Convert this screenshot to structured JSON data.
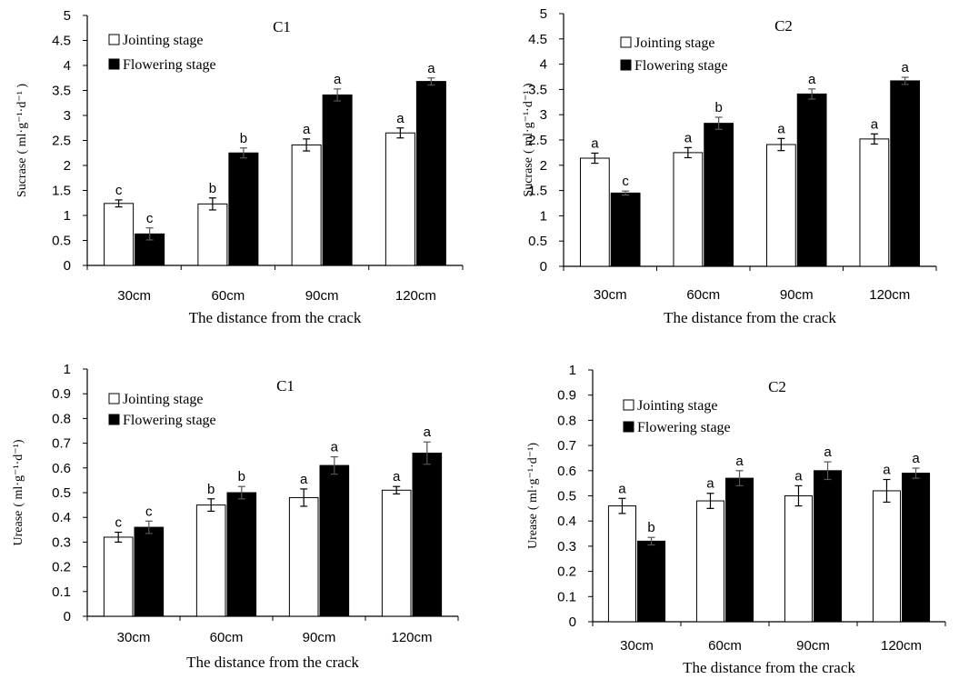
{
  "chart_data": [
    {
      "type": "bar",
      "title": "C1",
      "xlabel": "The distance from the crack",
      "ylabel_main": "Sucrase",
      "ylabel_unit": "( ml·g⁻¹·d⁻¹ )",
      "ylim": [
        0,
        5
      ],
      "ytick_labels": [
        "0",
        "0.5",
        "1",
        "1.5",
        "2",
        "2.5",
        "3",
        "3.5",
        "4",
        "4.5",
        "5"
      ],
      "categories": [
        "30cm",
        "60cm",
        "90cm",
        "120cm"
      ],
      "legend_position": "top-left",
      "series": [
        {
          "name": "Jointing stage",
          "fill": "#ffffff",
          "values": [
            1.24,
            1.23,
            2.41,
            2.65
          ],
          "errors": [
            0.07,
            0.12,
            0.12,
            0.1
          ],
          "letters": [
            "c",
            "b",
            "a",
            "a"
          ]
        },
        {
          "name": "Flowering stage",
          "fill": "#000000",
          "values": [
            0.63,
            2.25,
            3.41,
            3.68
          ],
          "errors": [
            0.12,
            0.1,
            0.12,
            0.07
          ],
          "letters": [
            "c",
            "b",
            "a",
            "a"
          ]
        }
      ]
    },
    {
      "type": "bar",
      "title": "C2",
      "xlabel": "The distance from the crack",
      "ylabel_main": "Sucrase",
      "ylabel_unit": "( ml·g⁻¹·d⁻¹ )",
      "ylim": [
        0,
        5
      ],
      "ytick_labels": [
        "0",
        "0.5",
        "1",
        "1.5",
        "2",
        "2.5",
        "3",
        "3.5",
        "4",
        "4.5",
        "5"
      ],
      "categories": [
        "30cm",
        "60cm",
        "90cm",
        "120cm"
      ],
      "legend_position": "top-left",
      "series": [
        {
          "name": "Jointing stage",
          "fill": "#ffffff",
          "values": [
            2.14,
            2.25,
            2.41,
            2.52
          ],
          "errors": [
            0.1,
            0.1,
            0.12,
            0.1
          ],
          "letters": [
            "a",
            "a",
            "a",
            "a"
          ]
        },
        {
          "name": "Flowering stage",
          "fill": "#000000",
          "values": [
            1.45,
            2.83,
            3.41,
            3.67
          ],
          "errors": [
            0.04,
            0.12,
            0.1,
            0.07
          ],
          "letters": [
            "c",
            "b",
            "a",
            "a"
          ]
        }
      ]
    },
    {
      "type": "bar",
      "title": "C1",
      "xlabel": "The distance from the crack",
      "ylabel_main": "Urease",
      "ylabel_unit": "( ml·g⁻¹·d⁻¹)",
      "ylim": [
        0,
        1
      ],
      "ytick_labels": [
        "0",
        "0.1",
        "0.2",
        "0.3",
        "0.4",
        "0.5",
        "0.6",
        "0.7",
        "0.8",
        "0.9",
        "1"
      ],
      "categories": [
        "30cm",
        "60cm",
        "90cm",
        "120cm"
      ],
      "legend_position": "top-left",
      "series": [
        {
          "name": "Jointing stage",
          "fill": "#ffffff",
          "values": [
            0.32,
            0.45,
            0.48,
            0.51
          ],
          "errors": [
            0.02,
            0.025,
            0.035,
            0.015
          ],
          "letters": [
            "c",
            "b",
            "a",
            "a"
          ]
        },
        {
          "name": "Flowering stage",
          "fill": "#000000",
          "values": [
            0.36,
            0.5,
            0.61,
            0.66
          ],
          "errors": [
            0.025,
            0.025,
            0.035,
            0.045
          ],
          "letters": [
            "c",
            "b",
            "a",
            "a"
          ]
        }
      ]
    },
    {
      "type": "bar",
      "title": "C2",
      "xlabel": "The distance from the crack",
      "ylabel_main": "Urease",
      "ylabel_unit": "( ml·g⁻¹·d⁻¹)",
      "ylim": [
        0,
        1
      ],
      "ytick_labels": [
        "0",
        "0.1",
        "0.2",
        "0.3",
        "0.4",
        "0.5",
        "0.6",
        "0.7",
        "0.8",
        "0.9",
        "1"
      ],
      "categories": [
        "30cm",
        "60cm",
        "90cm",
        "120cm"
      ],
      "legend_position": "top-left",
      "series": [
        {
          "name": "Jointing stage",
          "fill": "#ffffff",
          "values": [
            0.46,
            0.48,
            0.5,
            0.52
          ],
          "errors": [
            0.03,
            0.03,
            0.04,
            0.045
          ],
          "letters": [
            "a",
            "a",
            "a",
            "a"
          ]
        },
        {
          "name": "Flowering stage",
          "fill": "#000000",
          "values": [
            0.32,
            0.57,
            0.6,
            0.59
          ],
          "errors": [
            0.015,
            0.03,
            0.035,
            0.02
          ],
          "letters": [
            "b",
            "a",
            "a",
            "a"
          ]
        }
      ]
    }
  ]
}
